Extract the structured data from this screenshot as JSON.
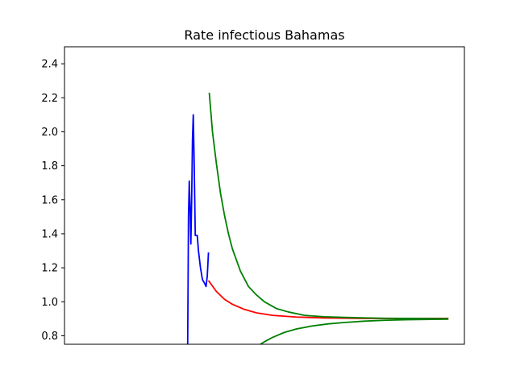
{
  "chart_data": {
    "type": "line",
    "title": "Rate infectious Bahamas",
    "xlabel": "",
    "ylabel": "",
    "x_ticks_visible": false,
    "xlim": [
      0,
      100
    ],
    "ylim": [
      0.75,
      2.5
    ],
    "yticks": [
      0.8,
      1.0,
      1.2,
      1.4,
      1.6,
      1.8,
      2.0,
      2.2,
      2.4
    ],
    "grid": false,
    "legend": "none",
    "series": [
      {
        "color": "#0000ff",
        "points": [
          [
            30.8,
            0.75
          ],
          [
            30.9,
            1.1
          ],
          [
            31.0,
            1.5
          ],
          [
            31.2,
            1.71
          ],
          [
            31.4,
            1.55
          ],
          [
            31.6,
            1.34
          ],
          [
            31.8,
            1.6
          ],
          [
            32.0,
            1.95
          ],
          [
            32.2,
            2.1
          ],
          [
            32.4,
            1.85
          ],
          [
            32.6,
            1.55
          ],
          [
            32.7,
            1.39
          ],
          [
            33.2,
            1.39
          ],
          [
            33.5,
            1.3
          ],
          [
            34.0,
            1.2
          ],
          [
            34.5,
            1.13
          ],
          [
            35.0,
            1.11
          ],
          [
            35.4,
            1.09
          ],
          [
            35.7,
            1.15
          ],
          [
            36.0,
            1.29
          ]
        ]
      },
      {
        "color": "#ff0000",
        "points": [
          [
            36.0,
            1.125
          ],
          [
            38,
            1.06
          ],
          [
            40,
            1.015
          ],
          [
            42,
            0.985
          ],
          [
            45,
            0.955
          ],
          [
            48,
            0.935
          ],
          [
            52,
            0.92
          ],
          [
            58,
            0.91
          ],
          [
            65,
            0.905
          ],
          [
            75,
            0.902
          ],
          [
            86,
            0.902
          ],
          [
            96,
            0.902
          ]
        ]
      },
      {
        "color": "#008000",
        "points": [
          [
            36.2,
            2.23
          ],
          [
            37,
            2.0
          ],
          [
            38,
            1.81
          ],
          [
            39,
            1.64
          ],
          [
            40,
            1.51
          ],
          [
            41,
            1.4
          ],
          [
            42,
            1.31
          ],
          [
            44,
            1.18
          ],
          [
            46,
            1.09
          ],
          [
            48,
            1.04
          ],
          [
            50,
            1.0
          ],
          [
            53,
            0.96
          ],
          [
            56,
            0.94
          ],
          [
            60,
            0.92
          ],
          [
            65,
            0.912
          ],
          [
            70,
            0.908
          ],
          [
            75,
            0.905
          ],
          [
            80,
            0.903
          ],
          [
            86,
            0.902
          ],
          [
            92,
            0.901
          ],
          [
            96,
            0.9
          ]
        ]
      },
      {
        "color": "#008000",
        "points": [
          [
            49.0,
            0.75
          ],
          [
            50,
            0.765
          ],
          [
            52,
            0.79
          ],
          [
            55,
            0.82
          ],
          [
            58,
            0.84
          ],
          [
            62,
            0.858
          ],
          [
            66,
            0.87
          ],
          [
            70,
            0.878
          ],
          [
            75,
            0.886
          ],
          [
            80,
            0.891
          ],
          [
            85,
            0.894
          ],
          [
            90,
            0.896
          ],
          [
            96,
            0.898
          ]
        ]
      }
    ]
  }
}
